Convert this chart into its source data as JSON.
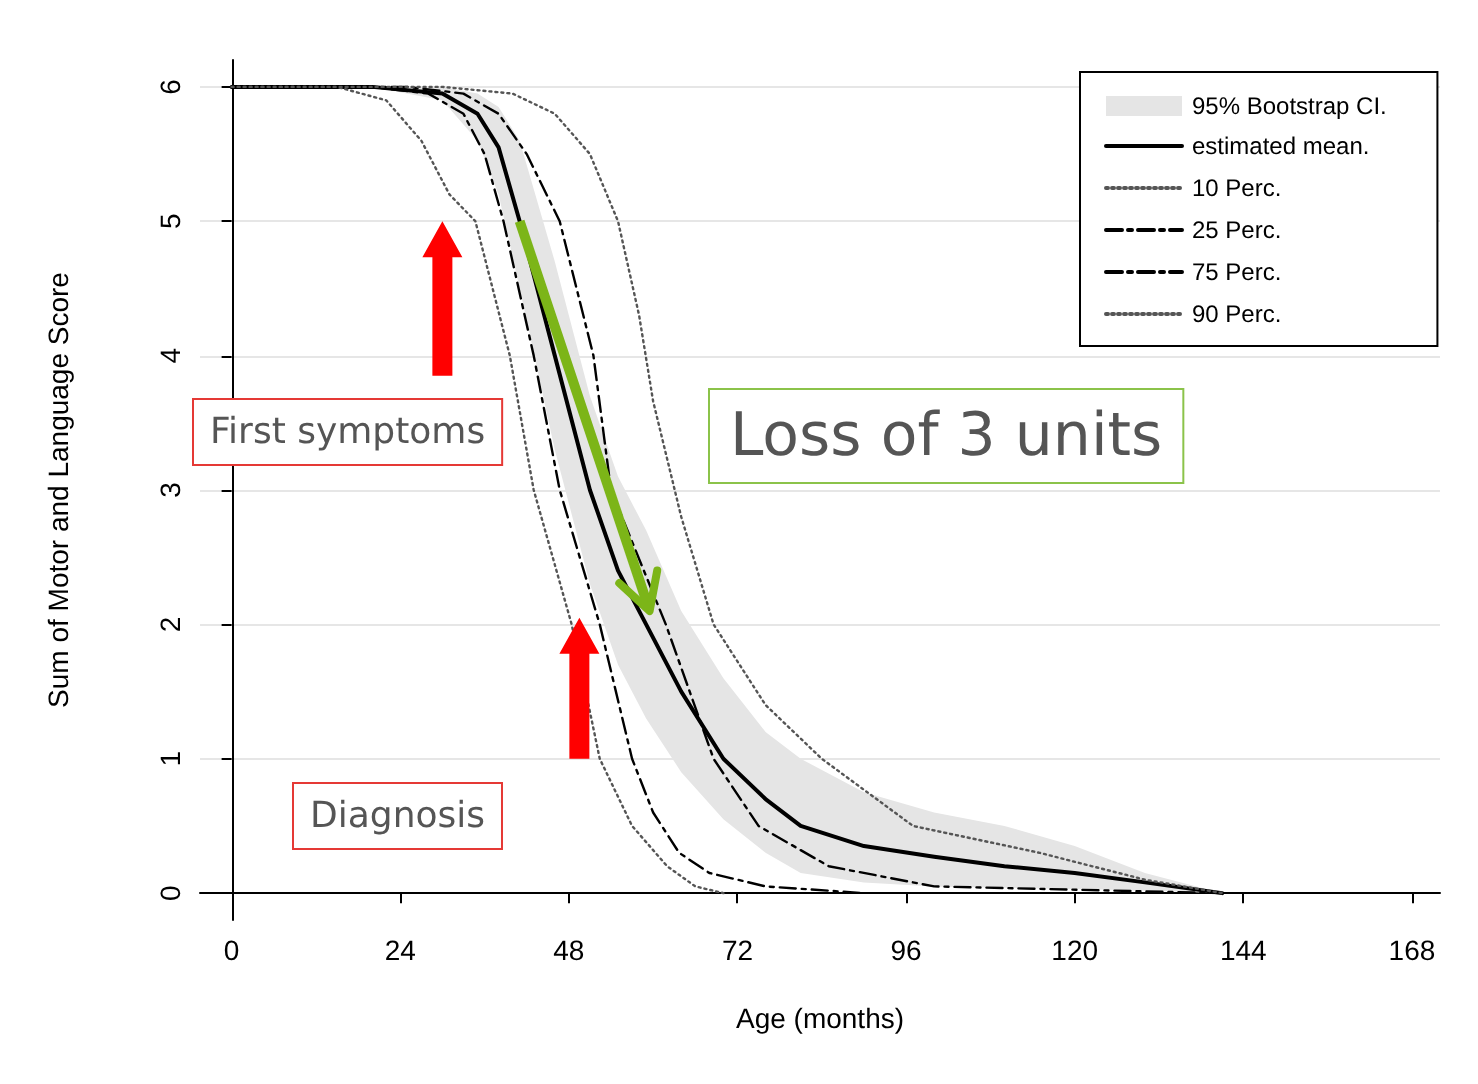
{
  "chart_data": {
    "type": "line",
    "xlabel": "Age (months)",
    "ylabel": "Sum of Motor and Language Score",
    "xlim": [
      -4.5,
      172
    ],
    "ylim": [
      -0.2,
      6.2
    ],
    "xticks": [
      0,
      24,
      48,
      72,
      96,
      120,
      144,
      168
    ],
    "yticks": [
      0,
      1,
      2,
      3,
      4,
      5,
      6
    ],
    "grid": "y",
    "legend": "top right",
    "marker": "none",
    "annotations": [
      "First symptoms",
      "Loss of 3 units",
      "Diagnosis",
      "95% Bootstrap CI."
    ],
    "series": [
      {
        "name": "estimated mean.",
        "color": "#000000",
        "line_style": "solid",
        "x": [
          0,
          20,
          30,
          35,
          38,
          41,
          46,
          51,
          55,
          59,
          64,
          70,
          76,
          81,
          90,
          100,
          110,
          120,
          130,
          141
        ],
        "values": [
          6,
          6,
          5.95,
          5.8,
          5.55,
          5,
          4,
          3,
          2.4,
          2,
          1.5,
          1,
          0.7,
          0.5,
          0.35,
          0.27,
          0.2,
          0.15,
          0.08,
          0
        ],
        "lower": [
          6,
          6,
          5.9,
          5.6,
          5.2,
          4.5,
          3.3,
          2.3,
          1.7,
          1.3,
          0.9,
          0.55,
          0.3,
          0.15,
          0.08,
          0.05,
          0.04,
          0.03,
          0.02,
          0
        ],
        "upper": [
          6,
          6,
          6,
          5.95,
          5.85,
          5.6,
          4.7,
          3.7,
          3.1,
          2.7,
          2.1,
          1.6,
          1.2,
          1.0,
          0.75,
          0.6,
          0.5,
          0.35,
          0.15,
          0
        ]
      },
      {
        "name": "10 Perc.",
        "color": "#555555",
        "line_style": "dotted",
        "x": [
          0,
          15,
          22,
          27,
          31,
          34.7,
          39.6,
          43,
          48.4,
          52.4,
          57,
          62,
          66,
          70
        ],
        "values": [
          6,
          6,
          5.9,
          5.6,
          5.2,
          5,
          4,
          3,
          2,
          1,
          0.5,
          0.2,
          0.05,
          0
        ]
      },
      {
        "name": "25 Perc.",
        "color": "#000000",
        "line_style": "dashed",
        "x": [
          0,
          20,
          28,
          33,
          36,
          38.7,
          43,
          46.7,
          52.4,
          57,
          60,
          63.7,
          68,
          76,
          90
        ],
        "values": [
          6,
          6,
          5.95,
          5.8,
          5.5,
          5,
          4,
          3,
          2,
          1,
          0.6,
          0.3,
          0.15,
          0.05,
          0
        ]
      },
      {
        "name": "75 Perc.",
        "color": "#000000",
        "line_style": "dashed",
        "x": [
          0,
          25,
          33,
          38,
          42,
          46.7,
          51.5,
          54,
          61.8,
          68.6,
          75,
          85,
          100,
          141
        ],
        "values": [
          6,
          6,
          5.95,
          5.8,
          5.5,
          5,
          4,
          3,
          2,
          1,
          0.5,
          0.2,
          0.05,
          0
        ]
      },
      {
        "name": "90 Perc.",
        "color": "#555555",
        "line_style": "dotted",
        "x": [
          0,
          30,
          40,
          46,
          51,
          55,
          58,
          60,
          64,
          68.6,
          76,
          84,
          97,
          115,
          130,
          141
        ],
        "values": [
          6,
          6,
          5.95,
          5.8,
          5.5,
          5,
          4.3,
          3.66,
          2.8,
          2,
          1.4,
          1,
          0.5,
          0.3,
          0.1,
          0
        ]
      }
    ]
  }
}
